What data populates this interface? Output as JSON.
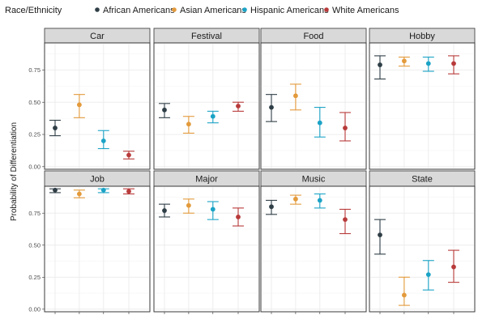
{
  "legend": {
    "title": "Race/Ethnicity",
    "items": [
      {
        "label": "African Americans",
        "color": "#2f3e46"
      },
      {
        "label": "Asian Americans",
        "color": "#e39a3b"
      },
      {
        "label": "Hispanic Americans",
        "color": "#1ba3c6"
      },
      {
        "label": "White Americans",
        "color": "#b83a3a"
      }
    ],
    "placement": "top"
  },
  "y_axis": {
    "title": "Probability of Differentiation",
    "ticks": [
      0,
      0.25,
      0.5,
      0.75
    ],
    "tick_labels": [
      "0.00",
      "0.25",
      "0.50",
      "0.75"
    ]
  },
  "chart_data": {
    "type": "scatter",
    "subtype": "point-range facet grid",
    "ylabel": "Probability of Differentiation",
    "ylim": [
      -0.02,
      0.96
    ],
    "grid": true,
    "series": [
      "African Americans",
      "Asian Americans",
      "Hispanic Americans",
      "White Americans"
    ],
    "panels": [
      {
        "title": "Car",
        "points": [
          {
            "series": "African Americans",
            "y": 0.3,
            "low": 0.24,
            "high": 0.36
          },
          {
            "series": "Asian Americans",
            "y": 0.48,
            "low": 0.38,
            "high": 0.56
          },
          {
            "series": "Hispanic Americans",
            "y": 0.2,
            "low": 0.14,
            "high": 0.28
          },
          {
            "series": "White Americans",
            "y": 0.09,
            "low": 0.06,
            "high": 0.12
          }
        ]
      },
      {
        "title": "Festival",
        "points": [
          {
            "series": "African Americans",
            "y": 0.44,
            "low": 0.38,
            "high": 0.49
          },
          {
            "series": "Asian Americans",
            "y": 0.33,
            "low": 0.26,
            "high": 0.39
          },
          {
            "series": "Hispanic Americans",
            "y": 0.39,
            "low": 0.34,
            "high": 0.43
          },
          {
            "series": "White Americans",
            "y": 0.47,
            "low": 0.43,
            "high": 0.5
          }
        ]
      },
      {
        "title": "Food",
        "points": [
          {
            "series": "African Americans",
            "y": 0.46,
            "low": 0.35,
            "high": 0.56
          },
          {
            "series": "Asian Americans",
            "y": 0.55,
            "low": 0.44,
            "high": 0.64
          },
          {
            "series": "Hispanic Americans",
            "y": 0.34,
            "low": 0.23,
            "high": 0.46
          },
          {
            "series": "White Americans",
            "y": 0.3,
            "low": 0.2,
            "high": 0.42
          }
        ]
      },
      {
        "title": "Hobby",
        "points": [
          {
            "series": "African Americans",
            "y": 0.79,
            "low": 0.68,
            "high": 0.86
          },
          {
            "series": "Asian Americans",
            "y": 0.82,
            "low": 0.78,
            "high": 0.85
          },
          {
            "series": "Hispanic Americans",
            "y": 0.8,
            "low": 0.74,
            "high": 0.85
          },
          {
            "series": "White Americans",
            "y": 0.8,
            "low": 0.72,
            "high": 0.86
          }
        ]
      },
      {
        "title": "Job",
        "points": [
          {
            "series": "African Americans",
            "y": 0.93,
            "low": 0.91,
            "high": 0.94
          },
          {
            "series": "Asian Americans",
            "y": 0.9,
            "low": 0.87,
            "high": 0.93
          },
          {
            "series": "Hispanic Americans",
            "y": 0.93,
            "low": 0.91,
            "high": 0.94
          },
          {
            "series": "White Americans",
            "y": 0.92,
            "low": 0.9,
            "high": 0.94
          }
        ]
      },
      {
        "title": "Major",
        "points": [
          {
            "series": "African Americans",
            "y": 0.77,
            "low": 0.72,
            "high": 0.82
          },
          {
            "series": "Asian Americans",
            "y": 0.81,
            "low": 0.75,
            "high": 0.86
          },
          {
            "series": "Hispanic Americans",
            "y": 0.78,
            "low": 0.7,
            "high": 0.84
          },
          {
            "series": "White Americans",
            "y": 0.72,
            "low": 0.65,
            "high": 0.79
          }
        ]
      },
      {
        "title": "Music",
        "points": [
          {
            "series": "African Americans",
            "y": 0.8,
            "low": 0.74,
            "high": 0.85
          },
          {
            "series": "Asian Americans",
            "y": 0.86,
            "low": 0.82,
            "high": 0.89
          },
          {
            "series": "Hispanic Americans",
            "y": 0.85,
            "low": 0.79,
            "high": 0.9
          },
          {
            "series": "White Americans",
            "y": 0.7,
            "low": 0.59,
            "high": 0.78
          }
        ]
      },
      {
        "title": "State",
        "points": [
          {
            "series": "African Americans",
            "y": 0.58,
            "low": 0.43,
            "high": 0.7
          },
          {
            "series": "Asian Americans",
            "y": 0.11,
            "low": 0.03,
            "high": 0.25
          },
          {
            "series": "Hispanic Americans",
            "y": 0.27,
            "low": 0.15,
            "high": 0.38
          },
          {
            "series": "White Americans",
            "y": 0.33,
            "low": 0.21,
            "high": 0.46
          }
        ]
      }
    ]
  }
}
